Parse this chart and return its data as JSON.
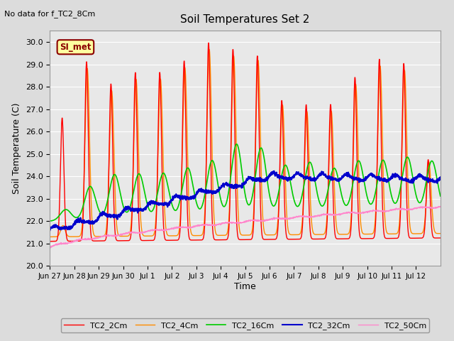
{
  "title": "Soil Temperatures Set 2",
  "subtitle": "No data for f_TC2_8Cm",
  "ylabel": "Soil Temperature (C)",
  "xlabel": "Time",
  "ylim": [
    20.0,
    30.5
  ],
  "ytick_values": [
    20.0,
    21.0,
    22.0,
    23.0,
    24.0,
    25.0,
    26.0,
    27.0,
    28.0,
    29.0,
    30.0
  ],
  "bg_color": "#dcdcdc",
  "plot_bg": "#e8e8e8",
  "legend_label": "SI_met",
  "legend_entries": [
    "TC2_2Cm",
    "TC2_4Cm",
    "TC2_16Cm",
    "TC2_32Cm",
    "TC2_50Cm"
  ],
  "line_colors": [
    "#ff0000",
    "#ff8c00",
    "#00cc00",
    "#0000cc",
    "#ff88cc"
  ],
  "line_widths": [
    1.0,
    1.0,
    1.2,
    1.5,
    1.0
  ],
  "xtick_labels": [
    "Jun 27",
    "Jun 28",
    "Jun 29",
    "Jun 30",
    "Jul 1",
    "Jul 2",
    "Jul 3",
    "Jul 4",
    "Jul 5",
    "Jul 6",
    "Jul 7",
    "Jul 8",
    "Jul 9",
    "Jul 10",
    "Jul 11",
    "Jul 12"
  ],
  "num_days": 16,
  "n_per_day": 144,
  "peak_heights_2cm": [
    5.5,
    8.0,
    7.0,
    7.5,
    7.5,
    8.0,
    8.8,
    8.5,
    8.2,
    6.2,
    6.0,
    6.0,
    7.2,
    8.0,
    7.8,
    3.5
  ],
  "peak_heights_4cm": [
    0.5,
    7.5,
    6.5,
    7.0,
    7.0,
    7.5,
    8.3,
    8.0,
    7.8,
    5.8,
    5.5,
    5.5,
    6.7,
    7.5,
    7.3,
    3.2
  ],
  "peak_heights_16cm": [
    0.5,
    1.5,
    2.0,
    2.0,
    2.0,
    2.2,
    2.5,
    3.2,
    3.0,
    2.2,
    2.3,
    2.0,
    2.3,
    2.3,
    2.4,
    2.2
  ]
}
